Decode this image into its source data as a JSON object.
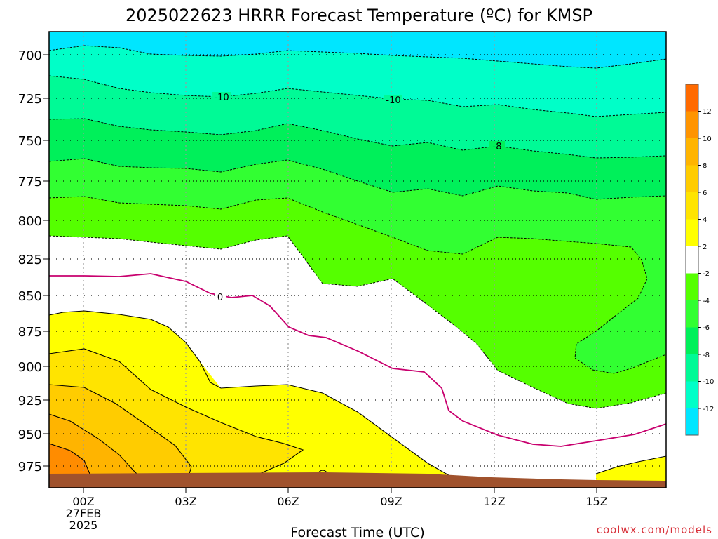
{
  "chart_data": {
    "type": "contour",
    "title": "2025022623 HRRR Forecast Temperature (ºC) for KMSP",
    "xlabel": "Forecast Time (UTC)",
    "ylabel": "",
    "x_ticks": [
      "00Z",
      "03Z",
      "06Z",
      "09Z",
      "12Z",
      "15Z"
    ],
    "x_date_line1": "27FEB",
    "x_date_line2": "2025",
    "x_forecast_hours": [
      0,
      3,
      6,
      9,
      12,
      15
    ],
    "xlim_hours": [
      -1,
      17
    ],
    "y_ticks": [
      700,
      725,
      750,
      775,
      800,
      825,
      850,
      875,
      900,
      925,
      950,
      975
    ],
    "ylim_hPa": [
      685,
      988
    ],
    "grid": true,
    "colorbar_ticks": [
      12,
      10,
      8,
      6,
      4,
      2,
      -2,
      -4,
      -6,
      -8,
      -10,
      -12
    ],
    "colorbar_colors": [
      "#ff6a00",
      "#ff9400",
      "#ffb400",
      "#ffcc00",
      "#ffe400",
      "#ffff00",
      "#ffffff",
      "#55ff00",
      "#32ff32",
      "#00f05a",
      "#00fa96",
      "#00ffc8",
      "#00e6ff"
    ],
    "contour_labels": [
      "-10",
      "-10",
      "-8",
      "0"
    ],
    "filled_bands": [
      {
        "range": "< -12",
        "color": "#00e6ff"
      },
      {
        "range": "-12 to -10",
        "color": "#00ffc8"
      },
      {
        "range": "-10 to -8",
        "color": "#00fa96"
      },
      {
        "range": "-8 to -6",
        "color": "#00f05a"
      },
      {
        "range": "-6 to -4",
        "color": "#32ff32"
      },
      {
        "range": "-4 to -2",
        "color": "#55ff00"
      },
      {
        "range": "-2 to 2",
        "color": "#ffffff"
      },
      {
        "range": "2 to 4",
        "color": "#ffff00"
      },
      {
        "range": "4 to 6",
        "color": "#ffe400"
      },
      {
        "range": "6 to 8",
        "color": "#ffcc00"
      },
      {
        "range": "8 to 10",
        "color": "#ffb400"
      },
      {
        "range": "> 10",
        "color": "#ff8c00"
      }
    ],
    "freezing_line_color": "#c8006e",
    "ground_color": "#a0522d"
  },
  "credit": "coolwx.com/models"
}
